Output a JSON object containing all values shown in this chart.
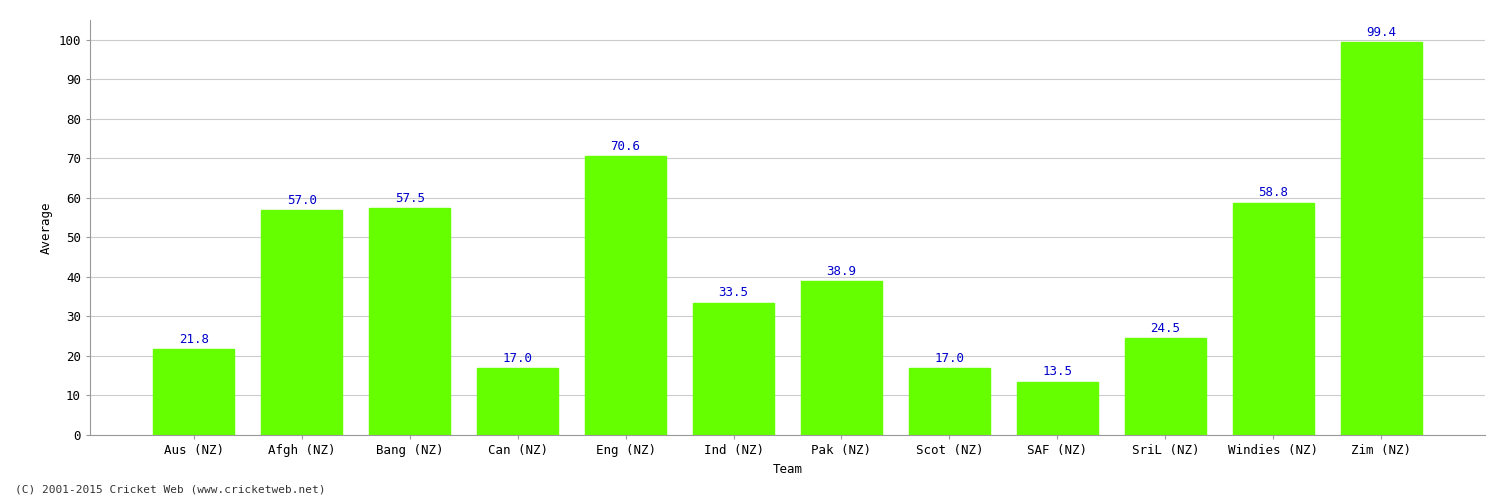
{
  "categories": [
    "Aus (NZ)",
    "Afgh (NZ)",
    "Bang (NZ)",
    "Can (NZ)",
    "Eng (NZ)",
    "Ind (NZ)",
    "Pak (NZ)",
    "Scot (NZ)",
    "SAF (NZ)",
    "SriL (NZ)",
    "Windies (NZ)",
    "Zim (NZ)"
  ],
  "values": [
    21.8,
    57.0,
    57.5,
    17.0,
    70.6,
    33.5,
    38.9,
    17.0,
    13.5,
    24.5,
    58.8,
    99.4
  ],
  "bar_color": "#66ff00",
  "label_color": "#0000cc",
  "ylabel": "Average",
  "xlabel": "Team",
  "ylim": [
    0,
    105
  ],
  "yticks": [
    0,
    10,
    20,
    30,
    40,
    50,
    60,
    70,
    80,
    90,
    100
  ],
  "grid_color": "#cccccc",
  "bg_color": "#ffffff",
  "footer": "(C) 2001-2015 Cricket Web (www.cricketweb.net)",
  "label_fontsize": 9,
  "axis_label_fontsize": 9,
  "tick_fontsize": 9,
  "footer_fontsize": 8,
  "bar_width": 0.75
}
